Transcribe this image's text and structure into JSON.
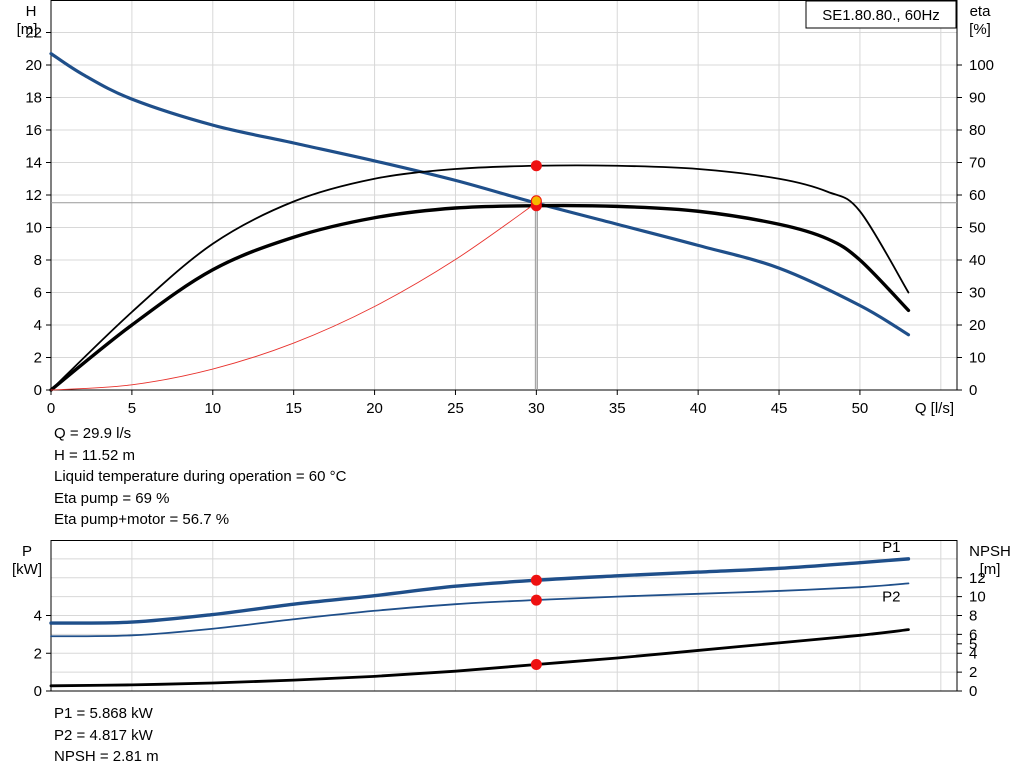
{
  "chart_data": [
    {
      "type": "line",
      "title": "SE1.80.80., 60Hz",
      "xlabel": "Q [l/s]",
      "ylabel_left": [
        "H",
        "[m]"
      ],
      "ylabel_right": [
        "eta",
        "[%]"
      ],
      "xlim": [
        0,
        56
      ],
      "ylim_left": [
        0,
        24
      ],
      "ylim_right": [
        0,
        120
      ],
      "xticks": [
        0,
        5,
        10,
        15,
        20,
        25,
        30,
        35,
        40,
        45,
        50
      ],
      "yticks_left": [
        0,
        2,
        4,
        6,
        8,
        10,
        12,
        14,
        16,
        18,
        20,
        22
      ],
      "yticks_right": [
        0,
        10,
        20,
        30,
        40,
        50,
        60,
        70,
        80,
        90,
        100
      ],
      "grid": true,
      "series": [
        {
          "key": "H",
          "axis": "left",
          "color": "#1f4f8a",
          "x": [
            0,
            2,
            5,
            10,
            15,
            20,
            25,
            30,
            35,
            40,
            45,
            50,
            53
          ],
          "y": [
            20.7,
            19.4,
            17.9,
            16.3,
            15.2,
            14.1,
            12.9,
            11.5,
            10.2,
            8.9,
            7.5,
            5.2,
            3.4
          ]
        },
        {
          "key": "eta_pump",
          "axis": "right",
          "color": "#000000",
          "x": [
            0,
            5,
            10,
            15,
            20,
            25,
            30,
            35,
            40,
            45,
            48,
            50,
            53
          ],
          "y": [
            0,
            24,
            45,
            58,
            65,
            68,
            69,
            69,
            68,
            65,
            61,
            55,
            30
          ]
        },
        {
          "key": "eta_pump_motor",
          "axis": "right",
          "color": "#000000",
          "x": [
            0,
            5,
            10,
            15,
            20,
            25,
            30,
            35,
            40,
            45,
            48,
            50,
            53
          ],
          "y": [
            0,
            20,
            37,
            47,
            53,
            56,
            56.7,
            56.5,
            55,
            51,
            46.5,
            40,
            24.5
          ]
        },
        {
          "key": "system_curve",
          "axis": "left",
          "color": "#e8322d",
          "x": [
            0,
            5,
            10,
            15,
            20,
            25,
            30
          ],
          "y": [
            0,
            0.32,
            1.29,
            2.89,
            5.14,
            8.03,
            11.52
          ]
        }
      ],
      "op_points": [
        {
          "x": 30,
          "y": 11.52,
          "axis": "left"
        },
        {
          "x": 30,
          "y": 69,
          "axis": "right"
        },
        {
          "x": 30,
          "y": 56.7,
          "axis": "right"
        }
      ],
      "op_point_highlight": {
        "x": 30,
        "y": 11.52,
        "axis": "left"
      },
      "crosshair": {
        "x": 30,
        "y": 11.52
      }
    },
    {
      "type": "line",
      "ylabel_left": [
        "P",
        "[kW]"
      ],
      "ylabel_right": [
        "NPSH",
        "[m]"
      ],
      "xlim": [
        0,
        56
      ],
      "ylim_left": [
        0,
        8
      ],
      "ylim_right": [
        0,
        16
      ],
      "yticks_left": [
        0,
        2,
        4
      ],
      "yticks_right": [
        0,
        2,
        4,
        5,
        6,
        8,
        10,
        12
      ],
      "grid": true,
      "series": [
        {
          "key": "P1",
          "name": "P1",
          "axis": "left",
          "color": "#1f4f8a",
          "x": [
            0,
            5,
            10,
            15,
            20,
            25,
            30,
            35,
            40,
            45,
            50,
            53
          ],
          "y": [
            3.6,
            3.65,
            4.05,
            4.6,
            5.05,
            5.55,
            5.87,
            6.1,
            6.3,
            6.5,
            6.8,
            7.0
          ]
        },
        {
          "key": "P2",
          "name": "P2",
          "axis": "left",
          "color": "#1f4f8a",
          "x": [
            0,
            5,
            10,
            15,
            20,
            25,
            30,
            35,
            40,
            45,
            50,
            53
          ],
          "y": [
            2.9,
            2.95,
            3.3,
            3.8,
            4.25,
            4.6,
            4.82,
            5.0,
            5.15,
            5.3,
            5.5,
            5.7
          ]
        },
        {
          "key": "NPSH",
          "axis": "right",
          "color": "#000000",
          "x": [
            0,
            5,
            10,
            15,
            20,
            25,
            30,
            35,
            40,
            45,
            50,
            53
          ],
          "y": [
            0.55,
            0.65,
            0.85,
            1.15,
            1.55,
            2.1,
            2.81,
            3.5,
            4.3,
            5.1,
            5.9,
            6.5
          ]
        }
      ],
      "op_points": [
        {
          "x": 30,
          "y": 5.868,
          "axis": "left"
        },
        {
          "x": 30,
          "y": 4.817,
          "axis": "left"
        },
        {
          "x": 30,
          "y": 2.81,
          "axis": "right"
        }
      ]
    }
  ],
  "info_top": [
    "Q = 29.9 l/s",
    "H = 11.52 m",
    "Liquid temperature during operation = 60 °C",
    "Eta pump = 69 %",
    "Eta pump+motor = 56.7 %"
  ],
  "info_bottom": [
    "P1 = 5.868 kW",
    "P2 = 4.817 kW",
    "NPSH = 2.81 m"
  ]
}
